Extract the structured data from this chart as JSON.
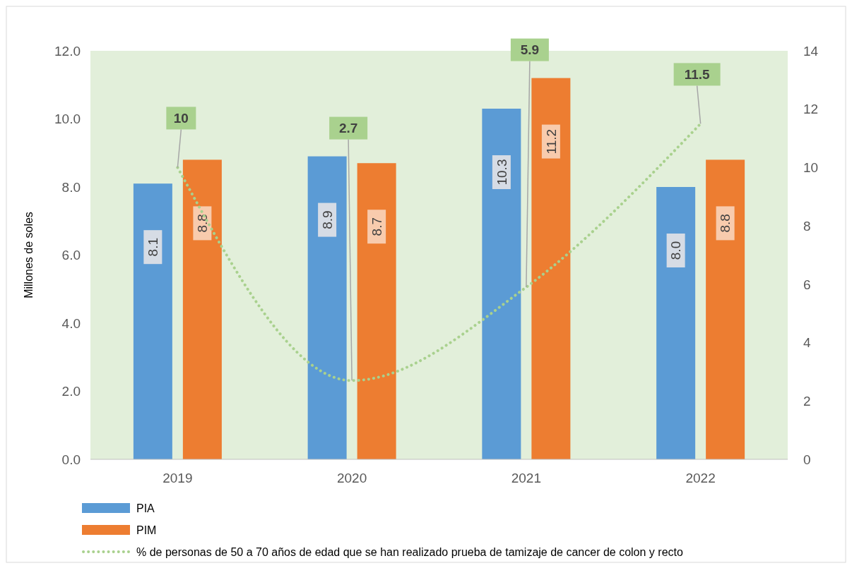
{
  "chart_data": {
    "type": "bar",
    "ylabel": "Millones de soles",
    "categories": [
      "2019",
      "2020",
      "2021",
      "2022"
    ],
    "series": [
      {
        "name": "PIA",
        "color": "#5b9bd5",
        "values": [
          8.1,
          8.9,
          10.3,
          8.0
        ],
        "value_labels": [
          "8.1",
          "8.9",
          "10.3",
          "8.0"
        ]
      },
      {
        "name": "PIM",
        "color": "#ed7d31",
        "values": [
          8.8,
          8.7,
          11.2,
          8.8
        ],
        "value_labels": [
          "8.8",
          "8.7",
          "11.2",
          "8.8"
        ]
      },
      {
        "name": "% de personas de 50 a 70 años de edad que se han realizado prueba de tamizaje de cancer de colon y recto",
        "type": "line",
        "axis": "y2",
        "color": "#a9d18e",
        "line_style": "dotted",
        "values": [
          10,
          2.7,
          5.9,
          11.5
        ],
        "value_labels": [
          "10",
          "2.7",
          "5.9",
          "11.5"
        ]
      }
    ],
    "ylim": [
      0,
      12
    ],
    "yticks": [
      {
        "value": 0,
        "label": "0.0"
      },
      {
        "value": 2,
        "label": "2.0"
      },
      {
        "value": 4,
        "label": "4.0"
      },
      {
        "value": 6,
        "label": "6.0"
      },
      {
        "value": 8,
        "label": "8.0"
      },
      {
        "value": 10,
        "label": "10.0"
      },
      {
        "value": 12,
        "label": "12.0"
      }
    ],
    "y2lim": [
      0,
      14
    ],
    "y2ticks": [
      0,
      2,
      4,
      6,
      8,
      10,
      12,
      14
    ],
    "grid": false,
    "legend": "bottom"
  }
}
